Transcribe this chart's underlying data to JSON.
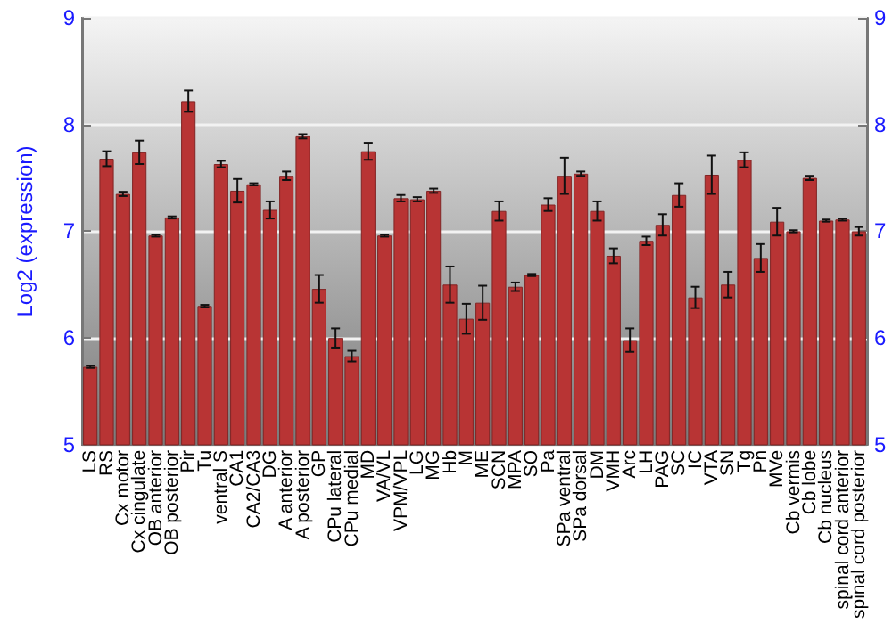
{
  "chart_data": {
    "type": "bar",
    "ylabel": "Log2 (expression)",
    "categories": [
      "LS",
      "RS",
      "Cx motor",
      "Cx cingulate",
      "OB anterior",
      "OB posterior",
      "Pir",
      "Tu",
      "ventral S",
      "CA1",
      "CA2/CA3",
      "DG",
      "A anterior",
      "A posterior",
      "GP",
      "CPu lateral",
      "CPu medial",
      "MD",
      "VA/VL",
      "VPM/VPL",
      "LG",
      "MG",
      "Hb",
      "M",
      "ME",
      "SCN",
      "MPA",
      "SO",
      "Pa",
      "SPa ventral",
      "SPa dorsal",
      "DM",
      "VMH",
      "Arc",
      "LH",
      "PAG",
      "SC",
      "IC",
      "VTA",
      "SN",
      "Tg",
      "Pn",
      "MVe",
      "Cb vermis",
      "Cb lobe",
      "Cb nucleus",
      "spinal cord anterior",
      "spinal cord posterior"
    ],
    "values": [
      5.73,
      7.68,
      7.35,
      7.74,
      6.96,
      7.13,
      8.22,
      6.3,
      7.63,
      7.38,
      7.44,
      7.2,
      7.52,
      7.89,
      6.46,
      6.0,
      5.83,
      7.75,
      6.96,
      7.31,
      7.3,
      7.38,
      6.5,
      6.18,
      6.33,
      7.19,
      6.48,
      6.59,
      7.25,
      7.52,
      7.54,
      7.19,
      6.77,
      5.98,
      6.91,
      7.06,
      7.34,
      6.38,
      7.53,
      6.5,
      7.67,
      6.75,
      7.09,
      7.0,
      7.5,
      7.1,
      7.11,
      7.0
    ],
    "errors": [
      0.01,
      0.07,
      0.02,
      0.11,
      0.01,
      0.01,
      0.1,
      0.01,
      0.03,
      0.11,
      0.01,
      0.08,
      0.04,
      0.02,
      0.13,
      0.09,
      0.05,
      0.08,
      0.01,
      0.03,
      0.02,
      0.02,
      0.17,
      0.14,
      0.16,
      0.09,
      0.04,
      0.01,
      0.06,
      0.17,
      0.02,
      0.09,
      0.07,
      0.11,
      0.04,
      0.1,
      0.11,
      0.1,
      0.18,
      0.12,
      0.07,
      0.13,
      0.13,
      0.01,
      0.02,
      0.01,
      0.01,
      0.04
    ],
    "color": "#b83434",
    "ylim": [
      5,
      9
    ],
    "yticks": [
      5,
      6,
      7,
      8,
      9
    ],
    "y2lim": [
      5,
      9
    ],
    "y2ticks": [
      5,
      6,
      7,
      8,
      9
    ],
    "grid": "y"
  }
}
